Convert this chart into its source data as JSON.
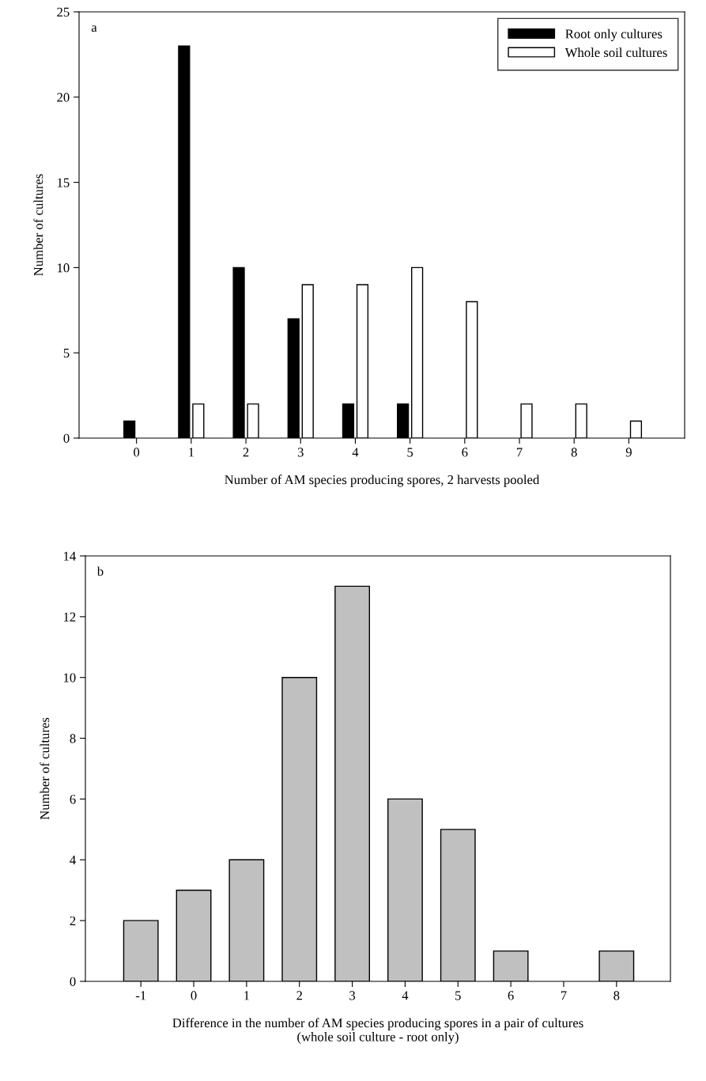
{
  "chart_data": [
    {
      "type": "bar",
      "xlabel": "Number of AM species producing spores, 2 harvests pooled",
      "ylabel": "Number of cultures",
      "categories": [
        "0",
        "1",
        "2",
        "3",
        "4",
        "5",
        "6",
        "7",
        "8",
        "9"
      ],
      "series": [
        {
          "name": "Root only cultures",
          "color": "#000000",
          "values": [
            1,
            23,
            10,
            7,
            2,
            2,
            0,
            0,
            0,
            0
          ]
        },
        {
          "name": "Whole soil cultures",
          "color": "#ffffff",
          "values": [
            0,
            2,
            2,
            9,
            9,
            10,
            8,
            2,
            2,
            1
          ]
        }
      ],
      "ylim": [
        0,
        25
      ],
      "yticks": [
        0,
        5,
        10,
        15,
        20,
        25
      ],
      "legend": "top right",
      "grid": false,
      "annotations": [
        "a"
      ]
    },
    {
      "type": "bar",
      "xlabel": "Difference in the number of AM species producing spores in a pair of cultures\n(whole soil culture - root only)",
      "ylabel": "Number of cultures",
      "categories": [
        "-1",
        "0",
        "1",
        "2",
        "3",
        "4",
        "5",
        "6",
        "7",
        "8"
      ],
      "series": [
        {
          "color": "#c0c0c0",
          "values": [
            2,
            3,
            4,
            10,
            13,
            6,
            5,
            1,
            0,
            1
          ]
        }
      ],
      "ylim": [
        0,
        14
      ],
      "yticks": [
        0,
        2,
        4,
        6,
        8,
        10,
        12,
        14
      ],
      "legend": false,
      "grid": false,
      "annotations": [
        "b"
      ]
    }
  ]
}
